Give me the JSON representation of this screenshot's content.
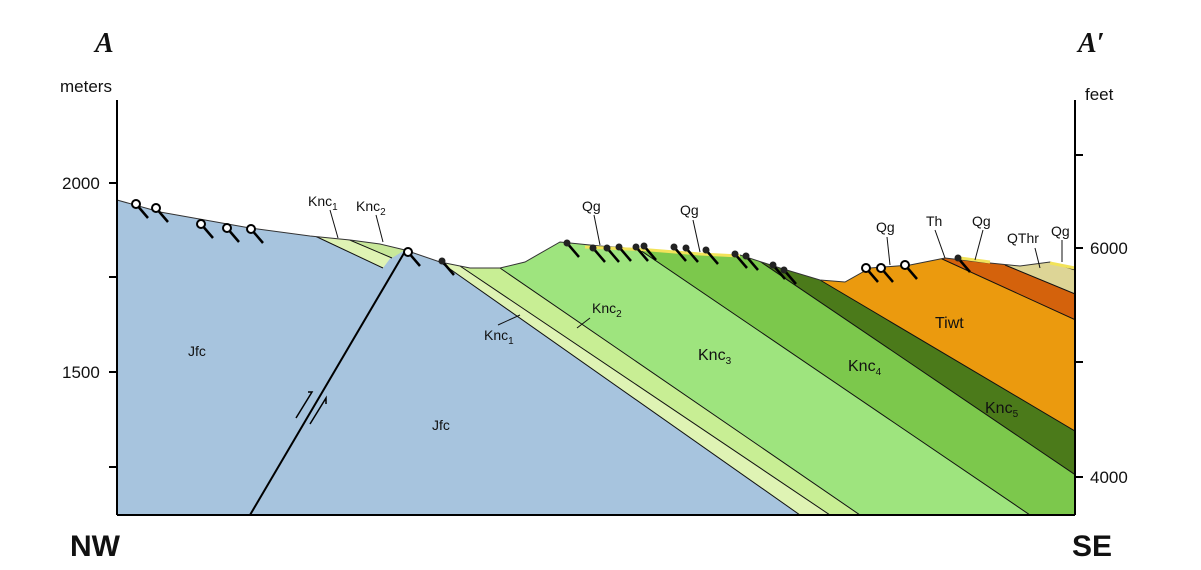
{
  "header": {
    "left_letter": "A",
    "right_letter": "A′"
  },
  "axes": {
    "left_unit": "meters",
    "right_unit": "feet",
    "left_ticks": [
      "2000",
      "1500"
    ],
    "right_ticks": [
      "6000",
      "4000"
    ]
  },
  "directions": {
    "left": "NW",
    "right": "SE"
  },
  "labels": [
    {
      "text": "Jfc"
    },
    {
      "text": "Jfc"
    },
    {
      "text": "Knc",
      "sub": "1"
    },
    {
      "text": "Knc",
      "sub": "2"
    },
    {
      "text": "Qg"
    },
    {
      "text": "Qg"
    },
    {
      "text": "Qg"
    },
    {
      "text": "Th"
    },
    {
      "text": "Qg"
    },
    {
      "text": "QThr"
    },
    {
      "text": "Qg"
    },
    {
      "text": "Knc",
      "sub": "1"
    },
    {
      "text": "Knc",
      "sub": "2"
    },
    {
      "text": "Knc",
      "sub": "3"
    },
    {
      "text": "Knc",
      "sub": "4"
    },
    {
      "text": "Tiwt"
    },
    {
      "text": "Knc",
      "sub": "5"
    }
  ]
}
